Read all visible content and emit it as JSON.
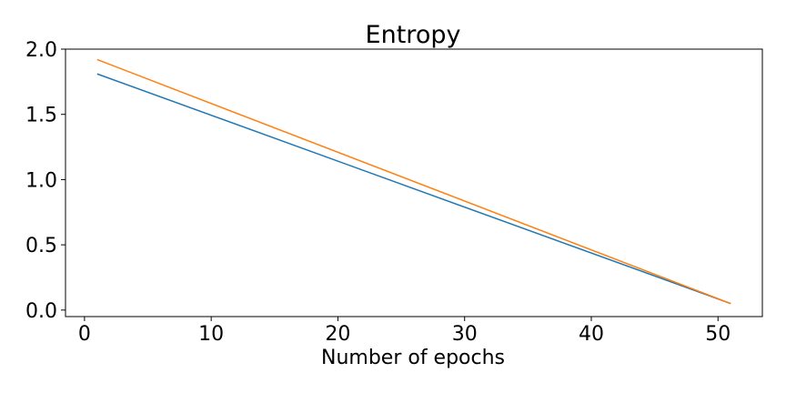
{
  "chart_data": {
    "type": "line",
    "title": "Entropy",
    "xlabel": "Number of epochs",
    "ylabel": "",
    "xlim": [
      -1.5,
      53.5
    ],
    "ylim": [
      -0.05,
      2.0
    ],
    "xticks": [
      0,
      10,
      20,
      30,
      40,
      50
    ],
    "yticks": [
      0.0,
      0.5,
      1.0,
      1.5,
      2.0
    ],
    "xtick_labels": [
      "0",
      "10",
      "20",
      "30",
      "40",
      "50"
    ],
    "ytick_labels": [
      "0.0",
      "0.5",
      "1.0",
      "1.5",
      "2.0"
    ],
    "grid": false,
    "legend": false,
    "series": [
      {
        "color": "#1f77b4",
        "x": [
          1,
          51
        ],
        "y": [
          1.81,
          0.05
        ]
      },
      {
        "color": "#ff7f0e",
        "x": [
          1,
          51
        ],
        "y": [
          1.92,
          0.05
        ]
      }
    ]
  }
}
